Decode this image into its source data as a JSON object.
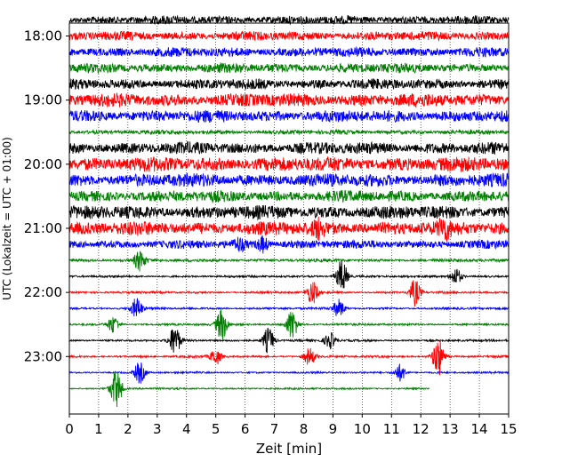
{
  "chart_data": {
    "type": "line",
    "title": "",
    "xlabel": "Zeit  [min]",
    "ylabel": "UTC (Lokalzeit = UTC + 01:00)",
    "xlim": [
      0,
      15
    ],
    "x_ticks": [
      "0",
      "1",
      "2",
      "3",
      "4",
      "5",
      "6",
      "7",
      "8",
      "9",
      "10",
      "11",
      "12",
      "13",
      "14",
      "15"
    ],
    "y_ticks": [
      {
        "label": "18:00",
        "row": 0
      },
      {
        "label": "19:00",
        "row": 4
      },
      {
        "label": "20:00",
        "row": 8
      },
      {
        "label": "21:00",
        "row": 12
      },
      {
        "label": "22:00",
        "row": 16
      },
      {
        "label": "23:00",
        "row": 20
      }
    ],
    "grid": "vertical dotted lines at each minute",
    "row_interval_min": 15,
    "series_colors": [
      "#000000",
      "#ff0000",
      "#0000ff",
      "#008000"
    ],
    "traces": [
      {
        "start": "17:45",
        "color": "#000000",
        "amplitude": 0.7
      },
      {
        "start": "18:00",
        "color": "#ff0000",
        "amplitude": 0.75
      },
      {
        "start": "18:15",
        "color": "#0000ff",
        "amplitude": 0.8
      },
      {
        "start": "18:30",
        "color": "#008000",
        "amplitude": 0.8
      },
      {
        "start": "18:45",
        "color": "#000000",
        "amplitude": 0.85
      },
      {
        "start": "19:00",
        "color": "#ff0000",
        "amplitude": 1.1
      },
      {
        "start": "19:15",
        "color": "#0000ff",
        "amplitude": 1.0
      },
      {
        "start": "19:30",
        "color": "#008000",
        "amplitude": 0.35
      },
      {
        "start": "19:45",
        "color": "#000000",
        "amplitude": 1.0
      },
      {
        "start": "20:00",
        "color": "#ff0000",
        "amplitude": 1.2
      },
      {
        "start": "20:15",
        "color": "#0000ff",
        "amplitude": 1.1
      },
      {
        "start": "20:30",
        "color": "#008000",
        "amplitude": 0.95
      },
      {
        "start": "20:45",
        "color": "#000000",
        "amplitude": 1.1
      },
      {
        "start": "21:00",
        "color": "#ff0000",
        "amplitude": 1.15
      },
      {
        "start": "21:15",
        "color": "#0000ff",
        "amplitude": 0.7
      },
      {
        "start": "21:30",
        "color": "#008000",
        "amplitude": 0.25
      },
      {
        "start": "21:45",
        "color": "#000000",
        "amplitude": 0.18
      },
      {
        "start": "22:00",
        "color": "#ff0000",
        "amplitude": 0.18
      },
      {
        "start": "22:15",
        "color": "#0000ff",
        "amplitude": 0.18
      },
      {
        "start": "22:30",
        "color": "#008000",
        "amplitude": 0.18
      },
      {
        "start": "22:45",
        "color": "#000000",
        "amplitude": 0.18
      },
      {
        "start": "23:00",
        "color": "#ff0000",
        "amplitude": 0.18
      },
      {
        "start": "23:15",
        "color": "#0000ff",
        "amplitude": 0.15
      },
      {
        "start": "23:30",
        "color": "#008000",
        "amplitude": 0.15,
        "end_min": 12.3
      }
    ],
    "events": [
      {
        "trace": 14,
        "x": 6.6,
        "size": 1.1
      },
      {
        "trace": 14,
        "x": 5.8,
        "size": 0.8
      },
      {
        "trace": 13,
        "x": 12.8,
        "size": 1.2
      },
      {
        "trace": 13,
        "x": 8.5,
        "size": 1.0
      },
      {
        "trace": 15,
        "x": 2.4,
        "size": 1.5
      },
      {
        "trace": 16,
        "x": 9.3,
        "size": 2.5
      },
      {
        "trace": 16,
        "x": 13.2,
        "size": 1.3
      },
      {
        "trace": 17,
        "x": 8.3,
        "size": 1.7
      },
      {
        "trace": 17,
        "x": 11.8,
        "size": 2.0
      },
      {
        "trace": 18,
        "x": 2.3,
        "size": 1.6
      },
      {
        "trace": 18,
        "x": 9.2,
        "size": 1.3
      },
      {
        "trace": 19,
        "x": 1.5,
        "size": 1.3
      },
      {
        "trace": 19,
        "x": 5.2,
        "size": 2.4
      },
      {
        "trace": 19,
        "x": 7.6,
        "size": 2.3
      },
      {
        "trace": 20,
        "x": 3.6,
        "size": 2.3
      },
      {
        "trace": 20,
        "x": 6.8,
        "size": 2.0
      },
      {
        "trace": 20,
        "x": 8.9,
        "size": 1.2
      },
      {
        "trace": 21,
        "x": 5.0,
        "size": 1.2
      },
      {
        "trace": 21,
        "x": 8.2,
        "size": 1.3
      },
      {
        "trace": 21,
        "x": 12.6,
        "size": 3.0
      },
      {
        "trace": 22,
        "x": 2.4,
        "size": 1.6
      },
      {
        "trace": 22,
        "x": 11.3,
        "size": 1.3
      },
      {
        "trace": 23,
        "x": 1.6,
        "size": 3.0
      }
    ]
  }
}
